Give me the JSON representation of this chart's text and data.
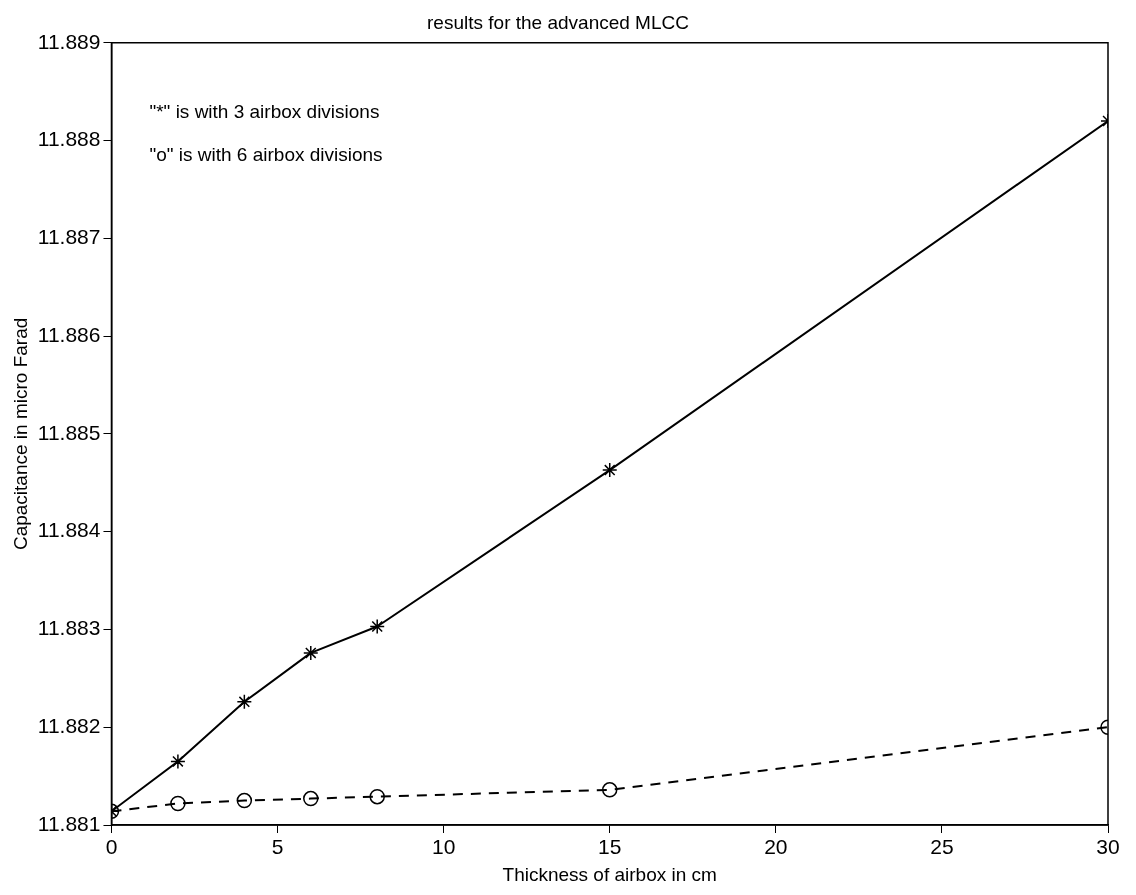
{
  "chart_data": {
    "type": "line",
    "title": "results for the advanced MLCC",
    "xlabel": "Thickness of airbox in cm",
    "ylabel": "Capacitance in micro Farad",
    "x": [
      0,
      2,
      4,
      6,
      8,
      15,
      30
    ],
    "series": [
      {
        "color": "#000000",
        "marker": "cross",
        "line_style": "solid",
        "values": [
          11.88114,
          11.88165,
          11.88226,
          11.88276,
          11.88303,
          11.88463,
          11.8882
        ]
      },
      {
        "color": "#000000",
        "marker": "circle",
        "line_style": "dashed",
        "values": [
          11.88114,
          11.88122,
          11.88125,
          11.88127,
          11.88129,
          11.88136,
          11.882
        ]
      }
    ],
    "annotations": [
      "\"*\" is with 3 airbox divisions",
      "\"o\" is with 6 airbox divisions"
    ],
    "xlim": [
      0,
      30
    ],
    "xticks": [
      0,
      5,
      10,
      15,
      20,
      25,
      30
    ],
    "ylim": [
      11.881,
      11.889
    ],
    "yticks": [
      11.881,
      11.882,
      11.883,
      11.884,
      11.885,
      11.886,
      11.887,
      11.888,
      11.889
    ],
    "grid": false,
    "legend": false
  }
}
